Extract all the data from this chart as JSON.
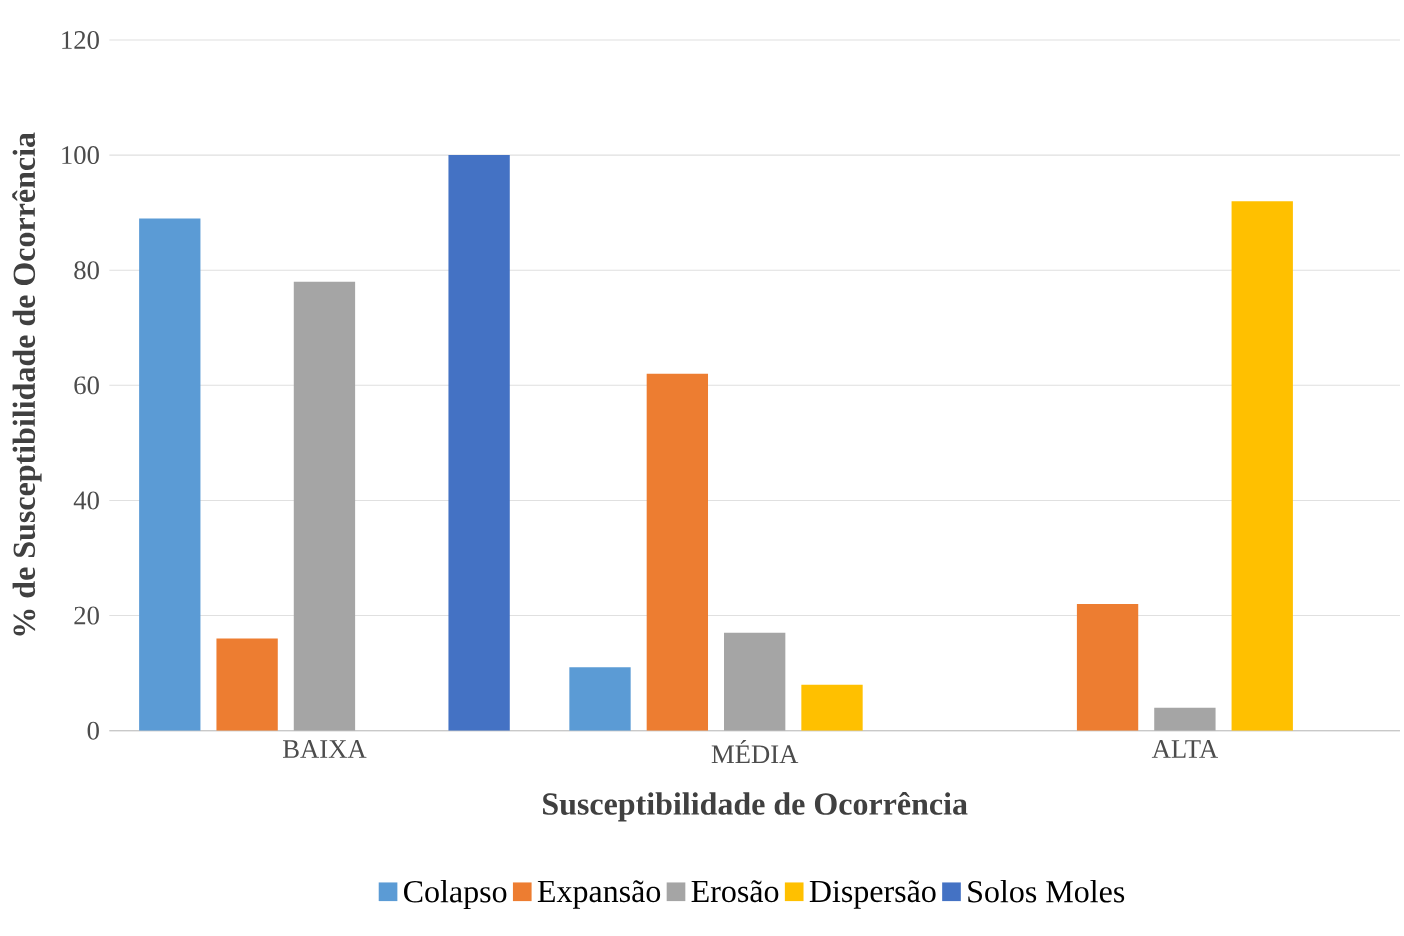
{
  "chart_data": {
    "type": "bar",
    "xlabel": "Susceptibilidade de Ocorrência",
    "ylabel": "% de Susceptibilidade de Ocorrência",
    "categories": [
      "BAIXA",
      "MÉDIA",
      "ALTA"
    ],
    "series": [
      {
        "name": "Colapso",
        "color": "#5b9bd5",
        "values": [
          89,
          11,
          null
        ]
      },
      {
        "name": "Expansão",
        "color": "#ed7d31",
        "values": [
          16,
          62,
          22
        ]
      },
      {
        "name": "Erosão",
        "color": "#a5a5a5",
        "values": [
          78,
          17,
          4
        ]
      },
      {
        "name": "Dispersão",
        "color": "#ffc000",
        "values": [
          null,
          8,
          92
        ]
      },
      {
        "name": "Solos Moles",
        "color": "#4472c4",
        "values": [
          100,
          null,
          null
        ]
      }
    ],
    "ylim": [
      0,
      120
    ],
    "yticks": [
      0,
      20,
      40,
      60,
      80,
      100,
      120
    ],
    "grid": "y",
    "legend": "bottom"
  }
}
